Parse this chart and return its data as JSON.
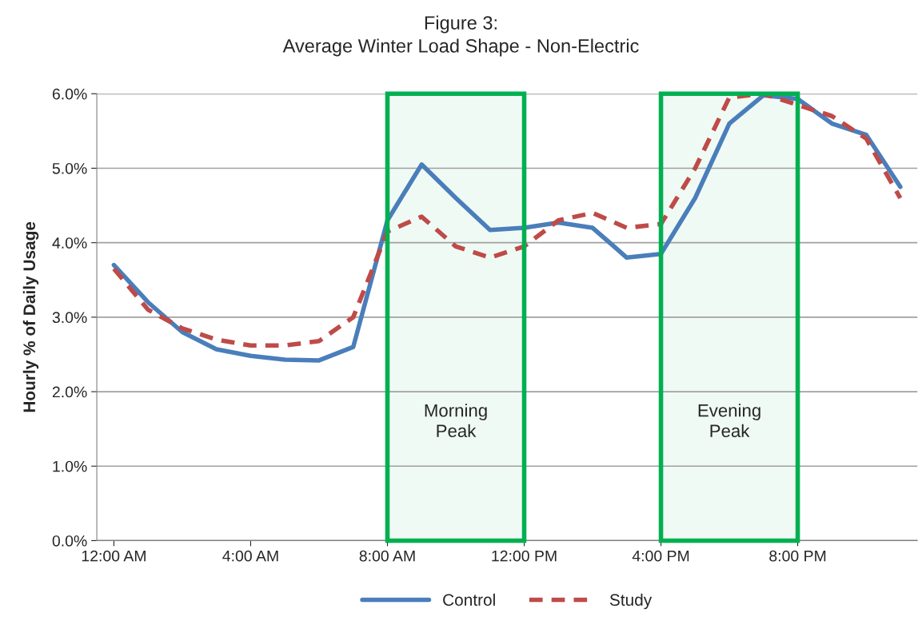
{
  "chart_data": {
    "type": "line",
    "title": "Figure 3:\nAverage Winter Load Shape - Non-Electric",
    "ylabel": "Hourly % of Daily Usage",
    "x": [
      0,
      1,
      2,
      3,
      4,
      5,
      6,
      7,
      8,
      9,
      10,
      11,
      12,
      13,
      14,
      15,
      16,
      17,
      18,
      19,
      20,
      21,
      22,
      23
    ],
    "xlim": [
      -0.5,
      23.5
    ],
    "xticks": [
      {
        "value": 0,
        "label": "12:00 AM"
      },
      {
        "value": 4,
        "label": "4:00 AM"
      },
      {
        "value": 8,
        "label": "8:00 AM"
      },
      {
        "value": 12,
        "label": "12:00 PM"
      },
      {
        "value": 16,
        "label": "4:00 PM"
      },
      {
        "value": 20,
        "label": "8:00 PM"
      }
    ],
    "ylim": [
      0,
      6
    ],
    "yticks": [
      {
        "value": 0,
        "label": "0.0%"
      },
      {
        "value": 1,
        "label": "1.0%"
      },
      {
        "value": 2,
        "label": "2.0%"
      },
      {
        "value": 3,
        "label": "3.0%"
      },
      {
        "value": 4,
        "label": "4.0%"
      },
      {
        "value": 5,
        "label": "5.0%"
      },
      {
        "value": 6,
        "label": "6.0%"
      }
    ],
    "series": [
      {
        "name": "Control",
        "color": "#4a7ebb",
        "line_style": "solid",
        "values": [
          3.7,
          3.2,
          2.8,
          2.57,
          2.48,
          2.43,
          2.42,
          2.6,
          4.3,
          5.05,
          4.6,
          4.17,
          4.2,
          4.27,
          4.2,
          3.8,
          3.85,
          4.6,
          5.6,
          5.98,
          5.93,
          5.6,
          5.45,
          4.75
        ]
      },
      {
        "name": "Study",
        "color": "#be4b48",
        "line_style": "dashed",
        "values": [
          3.65,
          3.1,
          2.85,
          2.7,
          2.62,
          2.62,
          2.68,
          3.0,
          4.15,
          4.35,
          3.95,
          3.8,
          3.95,
          4.3,
          4.4,
          4.2,
          4.25,
          5.0,
          5.95,
          6.0,
          5.85,
          5.7,
          5.4,
          4.6
        ]
      }
    ],
    "bands": [
      {
        "axis": "x",
        "from": 8,
        "to": 12,
        "label": "Morning\nPeak",
        "color": "#00b050"
      },
      {
        "axis": "x",
        "from": 16,
        "to": 20,
        "label": "Evening\nPeak",
        "color": "#00b050"
      }
    ],
    "grid": "y",
    "legend": "bottom",
    "marker": "none"
  }
}
